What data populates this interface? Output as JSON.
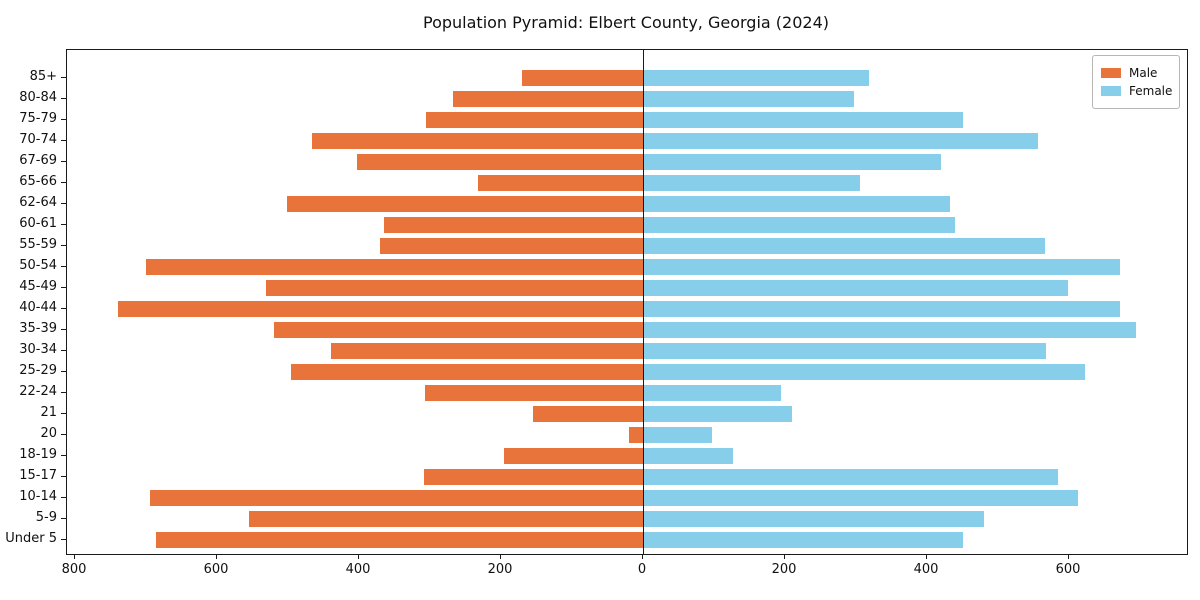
{
  "title": "Population Pyramid: Elbert County, Georgia (2024)",
  "legend": {
    "male_label": "Male",
    "female_label": "Female"
  },
  "colors": {
    "male": "#e8743b",
    "female": "#87ceeb",
    "axis": "#1a1a1a",
    "background": "#ffffff"
  },
  "chart_data": {
    "type": "bar",
    "variant": "population-pyramid",
    "title": "Population Pyramid: Elbert County, Georgia (2024)",
    "categories": [
      "85+",
      "80-84",
      "75-79",
      "70-74",
      "67-69",
      "65-66",
      "62-64",
      "60-61",
      "55-59",
      "50-54",
      "45-49",
      "40-44",
      "35-39",
      "30-34",
      "25-29",
      "22-24",
      "21",
      "20",
      "18-19",
      "15-17",
      "10-14",
      "5-9",
      "Under 5"
    ],
    "series": [
      {
        "name": "Male",
        "side": "left",
        "color": "#e8743b",
        "values": [
          170,
          268,
          305,
          466,
          403,
          232,
          501,
          365,
          370,
          700,
          531,
          740,
          520,
          440,
          496,
          307,
          155,
          20,
          196,
          308,
          694,
          555,
          686
        ]
      },
      {
        "name": "Female",
        "side": "right",
        "color": "#87ceeb",
        "values": [
          318,
          297,
          450,
          557,
          420,
          306,
          432,
          440,
          566,
          672,
          598,
          672,
          694,
          568,
          623,
          195,
          210,
          97,
          127,
          585,
          612,
          480,
          450
        ]
      }
    ],
    "x_ticks": [
      -800,
      -600,
      -400,
      -200,
      0,
      200,
      400,
      600
    ],
    "x_tick_labels": [
      "800",
      "600",
      "400",
      "200",
      "0",
      "200",
      "400",
      "600"
    ],
    "xlim": [
      -810,
      765
    ],
    "ylabel": "",
    "xlabel": "",
    "grid": false,
    "zero_line": true,
    "legend_position": "upper right"
  }
}
